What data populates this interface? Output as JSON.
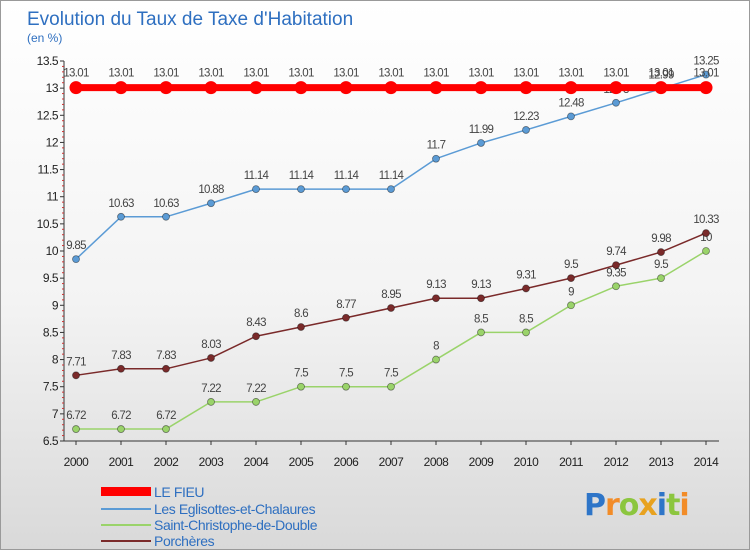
{
  "chart_data": {
    "type": "line",
    "title": "Evolution du Taux de Taxe d'Habitation",
    "subtitle": "(en %)",
    "x": [
      "2000",
      "2001",
      "2002",
      "2003",
      "2004",
      "2005",
      "2006",
      "2007",
      "2008",
      "2009",
      "2010",
      "2011",
      "2012",
      "2013",
      "2014"
    ],
    "y_ticks": [
      "6.5",
      "7",
      "7.5",
      "8",
      "8.5",
      "9",
      "9.5",
      "10",
      "10.5",
      "11",
      "11.5",
      "12",
      "12.5",
      "13",
      "13.5"
    ],
    "ylim": [
      6.5,
      13.5
    ],
    "grid": false,
    "legend_position": "bottom-left",
    "series": [
      {
        "name": "LE FIEU",
        "color": "#ff0000",
        "values": [
          13.01,
          13.01,
          13.01,
          13.01,
          13.01,
          13.01,
          13.01,
          13.01,
          13.01,
          13.01,
          13.01,
          13.01,
          13.01,
          13.01,
          13.01
        ],
        "labels": [
          "13.01",
          "13.01",
          "13.01",
          "13.01",
          "13.01",
          "13.01",
          "13.01",
          "13.01",
          "13.01",
          "13.01",
          "13.01",
          "13.01",
          "13.01",
          "13.01",
          "13.01"
        ]
      },
      {
        "name": "Les Eglisottes-et-Chalaures",
        "color": "#5b9bd5",
        "values": [
          9.85,
          10.63,
          10.63,
          10.88,
          11.14,
          11.14,
          11.14,
          11.14,
          11.7,
          11.99,
          12.23,
          12.48,
          12.73,
          12.99,
          13.25
        ],
        "labels": [
          "9.85",
          "10.63",
          "10.63",
          "10.88",
          "11.14",
          "11.14",
          "11.14",
          "11.14",
          "11.7",
          "11.99",
          "12.23",
          "12.48",
          "12.73",
          "12.99",
          "13.25"
        ]
      },
      {
        "name": "Saint-Christophe-de-Double",
        "color": "#9ad36a",
        "values": [
          6.72,
          6.72,
          6.72,
          7.22,
          7.22,
          7.5,
          7.5,
          7.5,
          8,
          8.5,
          8.5,
          9,
          9.35,
          9.5,
          10
        ],
        "labels": [
          "6.72",
          "6.72",
          "6.72",
          "7.22",
          "7.22",
          "7.5",
          "7.5",
          "7.5",
          "8",
          "8.5",
          "8.5",
          "9",
          "9.35",
          "9.5",
          "10"
        ]
      },
      {
        "name": "Porchères",
        "color": "#7a2a2a",
        "values": [
          7.71,
          7.83,
          7.83,
          8.03,
          8.43,
          8.6,
          8.77,
          8.95,
          9.13,
          9.13,
          9.31,
          9.5,
          9.74,
          9.98,
          10.33
        ],
        "labels": [
          "7.71",
          "7.83",
          "7.83",
          "8.03",
          "8.43",
          "8.6",
          "8.77",
          "8.95",
          "9.13",
          "9.13",
          "9.31",
          "9.5",
          "9.74",
          "9.98",
          "10.33"
        ]
      }
    ]
  },
  "brand": {
    "letters": [
      "P",
      "r",
      "o",
      "x",
      "i",
      "t",
      "i"
    ],
    "colors": [
      "#2e75c8",
      "#f28c28",
      "#8cc63f",
      "#e8a21f",
      "#2e75c8",
      "#8cc63f",
      "#f28c28"
    ]
  }
}
